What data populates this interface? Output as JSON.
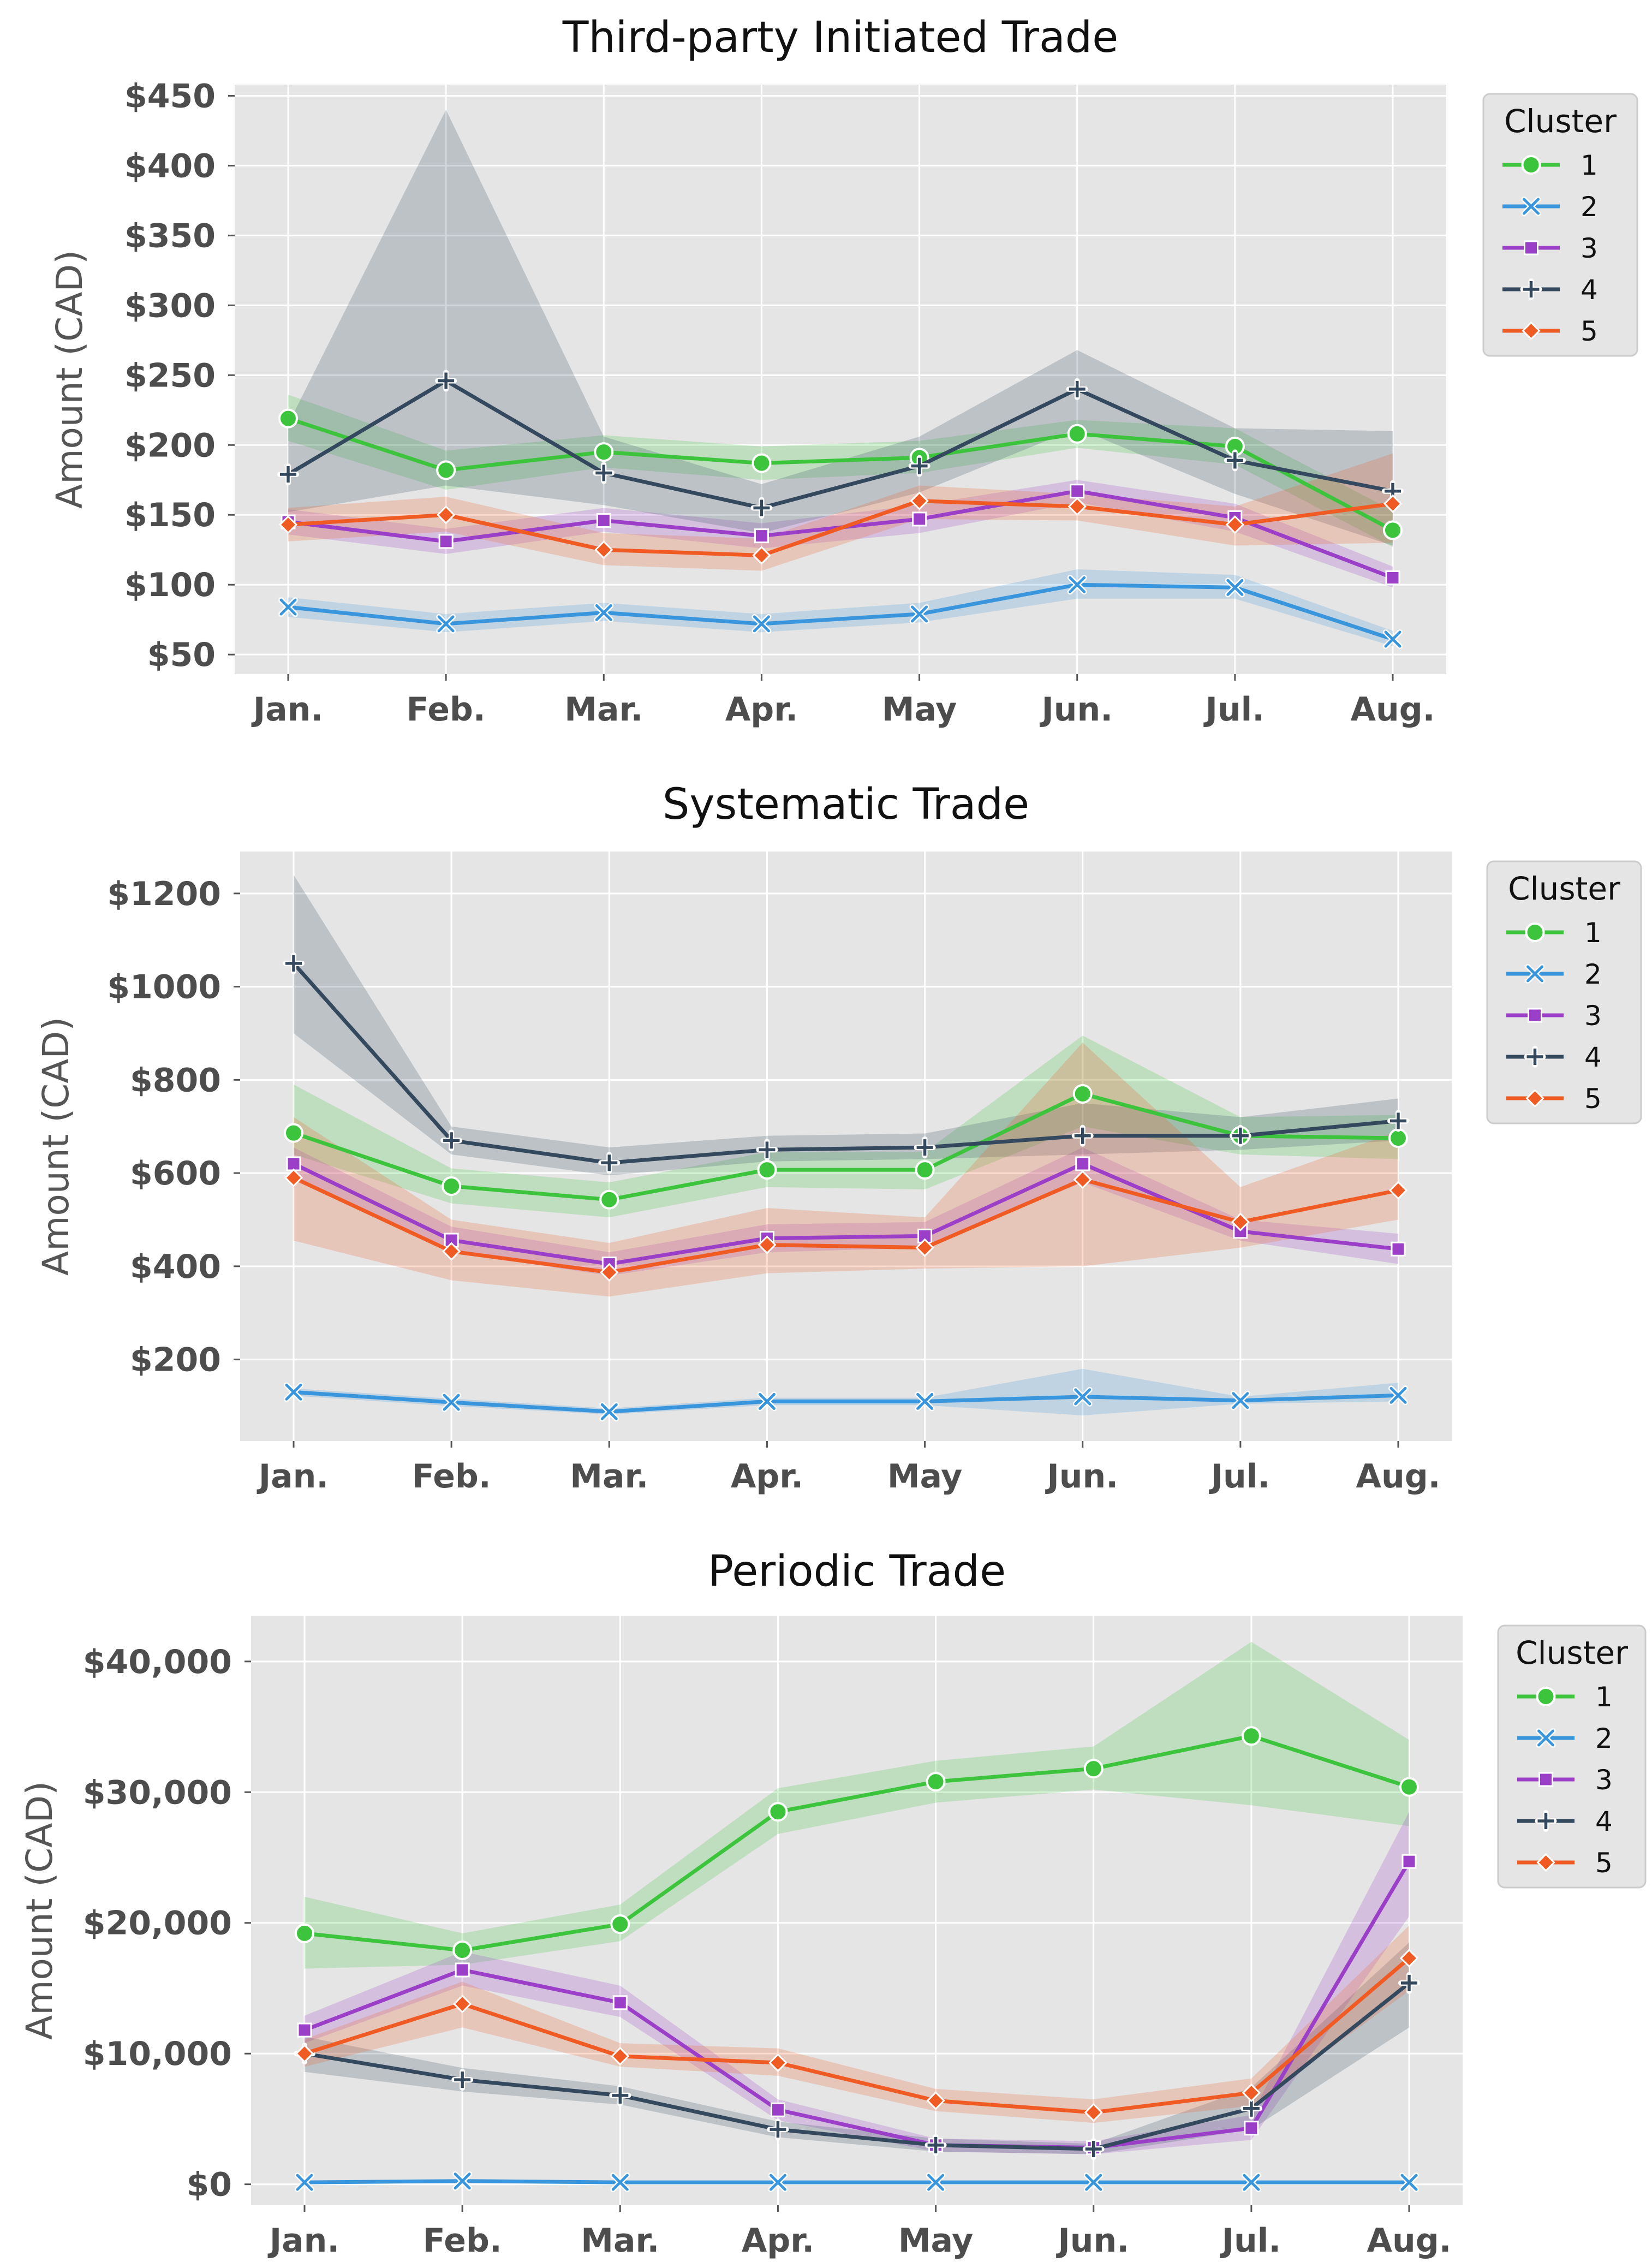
{
  "colors": {
    "1": "#3cc43c",
    "2": "#3a96dc",
    "3": "#9b3fc8",
    "4": "#34495e",
    "5": "#f05a23"
  },
  "chart_data": [
    {
      "type": "line",
      "title": "Third-party Initiated Trade",
      "ylabel": "Amount (CAD)",
      "xlabel": "",
      "categories": [
        "Jan.",
        "Feb.",
        "Mar.",
        "Apr.",
        "May",
        "Jun.",
        "Jul.",
        "Aug."
      ],
      "ylim": [
        36,
        458
      ],
      "yticks": [
        50,
        100,
        150,
        200,
        250,
        300,
        350,
        400,
        450
      ],
      "ytick_labels": [
        "$50",
        "$100",
        "$150",
        "$200",
        "$250",
        "$300",
        "$350",
        "$400",
        "$450"
      ],
      "legend_title": "Cluster",
      "legend_position": "outside-top-right",
      "grid": true,
      "series": [
        {
          "name": "1",
          "marker": "circle",
          "values": [
            219,
            182,
            195,
            187,
            191,
            208,
            199,
            139
          ],
          "lower": [
            203,
            168,
            184,
            175,
            180,
            198,
            186,
            127
          ],
          "upper": [
            236,
            196,
            207,
            199,
            203,
            218,
            212,
            153
          ]
        },
        {
          "name": "2",
          "marker": "x",
          "values": [
            84,
            72,
            80,
            72,
            79,
            100,
            98,
            61
          ],
          "lower": [
            77,
            66,
            74,
            66,
            73,
            90,
            90,
            56
          ],
          "upper": [
            91,
            79,
            87,
            79,
            87,
            111,
            107,
            67
          ]
        },
        {
          "name": "3",
          "marker": "square",
          "values": [
            145,
            131,
            146,
            135,
            147,
            167,
            148,
            105
          ],
          "lower": [
            136,
            122,
            138,
            126,
            137,
            159,
            138,
            98
          ],
          "upper": [
            154,
            140,
            155,
            144,
            157,
            175,
            158,
            113
          ]
        },
        {
          "name": "4",
          "marker": "plus",
          "values": [
            179,
            246,
            180,
            155,
            185,
            240,
            189,
            167
          ],
          "lower": [
            152,
            171,
            157,
            137,
            166,
            212,
            165,
            128
          ],
          "upper": [
            215,
            440,
            206,
            172,
            206,
            268,
            212,
            210
          ]
        },
        {
          "name": "5",
          "marker": "diamond",
          "values": [
            143,
            150,
            125,
            121,
            160,
            156,
            143,
            158
          ],
          "lower": [
            131,
            138,
            114,
            110,
            147,
            146,
            128,
            130
          ],
          "upper": [
            155,
            163,
            137,
            133,
            171,
            165,
            156,
            194
          ]
        }
      ]
    },
    {
      "type": "line",
      "title": "Systematic Trade",
      "ylabel": "Amount (CAD)",
      "xlabel": "",
      "categories": [
        "Jan.",
        "Feb.",
        "Mar.",
        "Apr.",
        "May",
        "Jun.",
        "Jul.",
        "Aug."
      ],
      "ylim": [
        25,
        1290
      ],
      "yticks": [
        200,
        400,
        600,
        800,
        1000,
        1200
      ],
      "ytick_labels": [
        "$200",
        "$400",
        "$600",
        "$800",
        "$1000",
        "$1200"
      ],
      "legend_title": "Cluster",
      "legend_position": "outside-top-right",
      "grid": true,
      "series": [
        {
          "name": "1",
          "marker": "circle",
          "values": [
            686,
            572,
            543,
            607,
            607,
            770,
            680,
            675
          ],
          "lower": [
            640,
            535,
            505,
            570,
            565,
            700,
            640,
            630
          ],
          "upper": [
            790,
            610,
            580,
            645,
            645,
            895,
            720,
            725
          ]
        },
        {
          "name": "2",
          "marker": "x",
          "values": [
            130,
            108,
            88,
            110,
            110,
            120,
            112,
            123
          ],
          "lower": [
            122,
            100,
            82,
            102,
            102,
            80,
            105,
            110
          ],
          "upper": [
            138,
            116,
            95,
            118,
            118,
            180,
            120,
            150
          ]
        },
        {
          "name": "3",
          "marker": "square",
          "values": [
            620,
            456,
            405,
            460,
            465,
            620,
            475,
            437
          ],
          "lower": [
            585,
            430,
            380,
            430,
            440,
            580,
            455,
            405
          ],
          "upper": [
            655,
            485,
            430,
            490,
            495,
            655,
            500,
            470
          ]
        },
        {
          "name": "4",
          "marker": "plus",
          "values": [
            1050,
            670,
            622,
            650,
            655,
            680,
            680,
            712
          ],
          "lower": [
            900,
            640,
            595,
            625,
            630,
            640,
            650,
            670
          ],
          "upper": [
            1240,
            700,
            655,
            680,
            685,
            750,
            720,
            760
          ]
        },
        {
          "name": "5",
          "marker": "diamond",
          "values": [
            590,
            432,
            387,
            446,
            440,
            586,
            495,
            563
          ],
          "lower": [
            455,
            370,
            335,
            385,
            395,
            400,
            440,
            500
          ],
          "upper": [
            720,
            500,
            450,
            525,
            505,
            880,
            570,
            690
          ]
        }
      ]
    },
    {
      "type": "line",
      "title": "Periodic Trade",
      "ylabel": "Amount (CAD)",
      "xlabel": "",
      "categories": [
        "Jan.",
        "Feb.",
        "Mar.",
        "Apr.",
        "May",
        "Jun.",
        "Jul.",
        "Aug."
      ],
      "ylim": [
        -1600,
        43500
      ],
      "yticks": [
        0,
        10000,
        20000,
        30000,
        40000
      ],
      "ytick_labels": [
        "$0",
        "$10,000",
        "$20,000",
        "$30,000",
        "$40,000"
      ],
      "legend_title": "Cluster",
      "legend_position": "outside-top-right",
      "grid": true,
      "series": [
        {
          "name": "1",
          "marker": "circle",
          "values": [
            19200,
            17900,
            19900,
            28500,
            30800,
            31800,
            34300,
            30400
          ],
          "lower": [
            16500,
            16800,
            18600,
            26800,
            29200,
            30200,
            29000,
            27400
          ],
          "upper": [
            22000,
            19200,
            21400,
            30300,
            32400,
            33500,
            41500,
            34000
          ]
        },
        {
          "name": "2",
          "marker": "x",
          "values": [
            150,
            250,
            150,
            150,
            150,
            150,
            150,
            150
          ],
          "lower": [
            50,
            100,
            50,
            50,
            50,
            50,
            50,
            50
          ],
          "upper": [
            250,
            400,
            250,
            250,
            250,
            250,
            250,
            250
          ]
        },
        {
          "name": "3",
          "marker": "square",
          "values": [
            11800,
            16400,
            13900,
            5700,
            3000,
            2800,
            4300,
            24700
          ],
          "lower": [
            10800,
            15200,
            12800,
            4900,
            2500,
            2300,
            3400,
            20500
          ],
          "upper": [
            12900,
            17800,
            15200,
            6500,
            3500,
            3300,
            5300,
            28500
          ]
        },
        {
          "name": "4",
          "marker": "plus",
          "values": [
            10000,
            8000,
            6800,
            4200,
            3000,
            2700,
            5800,
            15400
          ],
          "lower": [
            8600,
            7100,
            6100,
            3600,
            2500,
            2300,
            4200,
            12000
          ],
          "upper": [
            11300,
            8900,
            7500,
            4800,
            3500,
            3100,
            7400,
            18500
          ]
        },
        {
          "name": "5",
          "marker": "diamond",
          "values": [
            10000,
            13800,
            9800,
            9300,
            6400,
            5500,
            7000,
            17300
          ],
          "lower": [
            9000,
            12000,
            9000,
            8300,
            5600,
            4700,
            6000,
            14800
          ],
          "upper": [
            11100,
            15500,
            10800,
            10400,
            7300,
            6500,
            8100,
            19800
          ]
        }
      ]
    }
  ]
}
